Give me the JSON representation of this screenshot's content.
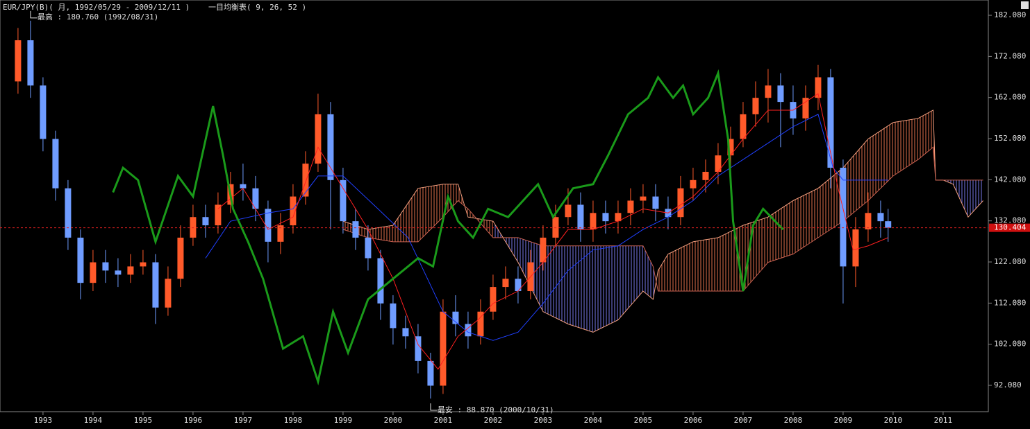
{
  "chart_data": {
    "type": "candlestick",
    "title": "EUR/JPY(B)( 月, 1992/05/29 - 2009/12/11 )",
    "subtitle": "一目均衡表( 9, 26, 52 )",
    "annotations": [
      "最高 : 180.760 (1992/08/31)",
      "最安 : 88.870 (2000/10/31)"
    ],
    "xlim": [
      1992.14,
      2011.89
    ],
    "xticks": [
      1993,
      1994,
      1995,
      1996,
      1997,
      1998,
      1999,
      2000,
      2001,
      2002,
      2003,
      2004,
      2005,
      2006,
      2007,
      2008,
      2009,
      2010,
      2011
    ],
    "ylim": [
      86.35,
      184.95
    ],
    "yticks": [
      {
        "value": 92.08,
        "label": "92.080"
      },
      {
        "value": 102.08,
        "label": "102.080"
      },
      {
        "value": 112.08,
        "label": "112.080"
      },
      {
        "value": 122.08,
        "label": "122.080"
      },
      {
        "value": 132.08,
        "label": "132.080"
      },
      {
        "value": 142.08,
        "label": "142.080"
      },
      {
        "value": 152.08,
        "label": "152.080"
      },
      {
        "value": 162.08,
        "label": "162.080"
      },
      {
        "value": 172.08,
        "label": "172.080"
      },
      {
        "value": 182.08,
        "label": "182.080"
      }
    ],
    "current_price": 130.404,
    "up_color": "#ff5a2a",
    "down_color": "#6f9cff",
    "x": [
      1992.5,
      1992.75,
      1993,
      1993.25,
      1993.5,
      1993.75,
      1994,
      1994.25,
      1994.5,
      1994.75,
      1995,
      1995.25,
      1995.5,
      1995.75,
      1996,
      1996.25,
      1996.5,
      1996.75,
      1997,
      1997.25,
      1997.5,
      1997.75,
      1998,
      1998.25,
      1998.5,
      1998.75,
      1999,
      1999.25,
      1999.5,
      1999.75,
      2000,
      2000.25,
      2000.5,
      2000.75,
      2001,
      2001.25,
      2001.5,
      2001.75,
      2002,
      2002.25,
      2002.5,
      2002.75,
      2003,
      2003.25,
      2003.5,
      2003.75,
      2004,
      2004.25,
      2004.5,
      2004.75,
      2005,
      2005.25,
      2005.5,
      2005.75,
      2006,
      2006.25,
      2006.5,
      2006.75,
      2007,
      2007.25,
      2007.5,
      2007.75,
      2008,
      2008.25,
      2008.5,
      2008.75,
      2009,
      2009.25,
      2009.5,
      2009.75,
      2009.9
    ],
    "open": [
      166,
      176,
      165,
      152,
      140,
      128,
      117,
      122,
      120,
      119,
      121,
      122,
      111,
      118,
      128,
      133,
      131,
      136,
      141,
      140,
      135,
      127,
      131,
      138,
      146,
      158,
      142,
      132,
      128,
      123,
      112,
      106,
      104,
      98,
      92,
      110,
      107,
      104,
      110,
      116,
      118,
      115,
      122,
      128,
      133,
      136,
      130,
      134,
      132,
      134,
      137,
      138,
      135,
      133,
      140,
      142,
      144,
      148,
      152,
      158,
      162,
      165,
      161,
      157,
      162,
      167,
      145,
      121,
      130,
      134,
      132
    ],
    "high": [
      179,
      180.76,
      167,
      154,
      142,
      130,
      125,
      125,
      123,
      124,
      125,
      124,
      121,
      131,
      136,
      136,
      139,
      144,
      146,
      143,
      137,
      134,
      141,
      149,
      163,
      161,
      145,
      135,
      131,
      125,
      114,
      109,
      107,
      100,
      113,
      114,
      110,
      113,
      119,
      121,
      121,
      125,
      131,
      136,
      140,
      139,
      137,
      137,
      137,
      140,
      141,
      141,
      138,
      143,
      145,
      147,
      151,
      155,
      161,
      166,
      169,
      168,
      165,
      165,
      170,
      169,
      147,
      133,
      139,
      137,
      135
    ],
    "low": [
      163,
      162,
      149,
      137,
      125,
      113,
      115,
      117,
      116,
      117,
      119,
      107,
      109,
      116,
      126,
      128,
      129,
      134,
      137,
      132,
      122,
      124,
      129,
      136,
      144,
      130,
      129,
      125,
      120,
      108,
      102,
      101,
      95,
      88.87,
      90,
      104,
      101,
      102,
      108,
      113,
      112,
      113,
      120,
      126,
      131,
      127,
      127,
      129,
      129,
      131,
      134,
      132,
      130,
      131,
      137,
      139,
      141,
      145,
      150,
      155,
      156,
      150,
      153,
      154,
      159,
      140,
      112,
      116,
      127,
      128,
      127
    ],
    "close": [
      176,
      165,
      152,
      140,
      128,
      117,
      122,
      120,
      119,
      121,
      122,
      111,
      118,
      128,
      133,
      131,
      136,
      141,
      140,
      135,
      127,
      131,
      138,
      146,
      158,
      142,
      132,
      128,
      123,
      112,
      106,
      104,
      98,
      92,
      110,
      107,
      104,
      110,
      116,
      118,
      115,
      122,
      128,
      133,
      136,
      130,
      134,
      132,
      134,
      137,
      138,
      135,
      133,
      140,
      142,
      144,
      148,
      152,
      158,
      162,
      165,
      161,
      157,
      162,
      167,
      145,
      121,
      130,
      134,
      132,
      130.4
    ],
    "tenkan": {
      "color": "#ff2020",
      "x": [
        1996.5,
        1997,
        1997.5,
        1998,
        1998.5,
        1999,
        1999.5,
        2000,
        2000.5,
        2000.9,
        2001.3,
        2001.7,
        2002,
        2002.5,
        2003,
        2003.5,
        2004,
        2004.5,
        2005,
        2005.5,
        2006,
        2006.5,
        2007,
        2007.5,
        2008,
        2008.5,
        2008.9,
        2009.2,
        2009.5,
        2009.9
      ],
      "values": [
        135,
        140,
        130,
        133,
        150,
        140,
        130,
        118,
        102,
        96,
        104,
        108,
        112,
        115,
        122,
        130,
        130,
        132,
        135,
        134,
        138,
        144,
        152,
        159,
        159,
        163,
        140,
        125,
        126,
        128
      ]
    },
    "kijun": {
      "color": "#2040ff",
      "x": [
        1996.25,
        1996.75,
        1997.5,
        1998,
        1998.5,
        1999,
        1999.7,
        2000.3,
        2001,
        2001.5,
        2002,
        2002.5,
        2003,
        2003.5,
        2004,
        2004.5,
        2005,
        2005.5,
        2006,
        2006.5,
        2007,
        2007.5,
        2008,
        2008.5,
        2008.8,
        2009,
        2009.9
      ],
      "values": [
        123,
        132,
        134,
        135,
        143,
        143,
        135,
        128,
        110,
        105,
        103,
        105,
        112,
        120,
        125,
        126,
        130,
        133,
        137,
        143,
        147,
        151,
        155,
        158,
        145,
        142,
        142
      ]
    },
    "chikou": {
      "color": "#1a9a1a",
      "x": [
        1994.4,
        1994.6,
        1994.9,
        1995.25,
        1995.7,
        1996,
        1996.4,
        1996.6,
        1996.8,
        1997.1,
        1997.4,
        1997.8,
        1998.2,
        1998.5,
        1998.8,
        1999.1,
        1999.5,
        2000,
        2000.5,
        2000.8,
        2001.1,
        2001.3,
        2001.6,
        2001.9,
        2002.3,
        2002.6,
        2002.9,
        2003.2,
        2003.6,
        2004,
        2004.3,
        2004.7,
        2005.1,
        2005.3,
        2005.6,
        2005.8,
        2006,
        2006.3,
        2006.5,
        2006.7,
        2006.8,
        2007,
        2007.2,
        2007.4,
        2007.8
      ],
      "values": [
        139,
        145,
        142,
        127,
        143,
        138,
        160,
        148,
        135,
        127,
        118,
        101,
        104,
        93,
        110,
        100,
        113,
        118,
        123,
        121,
        138,
        132,
        128,
        135,
        133,
        137,
        141,
        133,
        140,
        141,
        148,
        158,
        162,
        167,
        162,
        165,
        158,
        162,
        168,
        152,
        132,
        115,
        131,
        135,
        130
      ]
    },
    "cloud": {
      "up_color": "#e0704c",
      "down_color": "#7878e8",
      "x": [
        1999,
        1999.5,
        2000,
        2000.5,
        2001,
        2001.3,
        2001.5,
        2002,
        2002.5,
        2003,
        2003.5,
        2004,
        2004.5,
        2005,
        2005.2,
        2005.3,
        2005.5,
        2006,
        2006.5,
        2007,
        2007.5,
        2008,
        2008.5,
        2009,
        2009.5,
        2010,
        2010.5,
        2010.8,
        2010.85,
        2011,
        2011.2,
        2011.5,
        2011.8
      ],
      "span_a": [
        132,
        130,
        131,
        140,
        141,
        141,
        133,
        132,
        122,
        110,
        107,
        105,
        108,
        115,
        113,
        120,
        124,
        127,
        128,
        131,
        133,
        137,
        140,
        145,
        152,
        156,
        157,
        159,
        142,
        142,
        141,
        133,
        137
      ],
      "span_b": [
        130,
        128,
        127,
        127,
        133,
        137,
        135,
        128,
        128,
        126,
        126,
        126,
        126,
        126,
        121,
        115,
        115,
        115,
        115,
        115,
        122,
        124,
        128,
        132,
        137,
        143,
        147,
        150,
        142,
        142,
        142,
        142,
        142
      ]
    }
  }
}
